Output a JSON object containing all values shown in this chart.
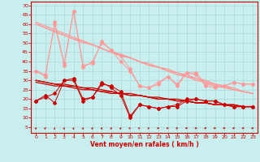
{
  "xlabel": "Vent moyen/en rafales ( km/h )",
  "background_color": "#c8eeee",
  "grid_color": "#a8d8d8",
  "text_color": "#cc0000",
  "spine_color": "#cc0000",
  "ylim": [
    2,
    72
  ],
  "yticks": [
    5,
    10,
    15,
    20,
    25,
    30,
    35,
    40,
    45,
    50,
    55,
    60,
    65,
    70
  ],
  "xlim": [
    -0.5,
    23.5
  ],
  "xticks": [
    0,
    1,
    2,
    3,
    4,
    5,
    6,
    7,
    8,
    9,
    10,
    11,
    12,
    13,
    14,
    15,
    16,
    17,
    18,
    19,
    20,
    21,
    22,
    23
  ],
  "line_dark_jagged1": [
    19,
    22,
    18,
    30,
    30,
    19,
    21,
    29,
    26,
    22,
    10,
    17,
    16,
    15,
    16,
    16,
    19,
    20,
    19,
    19,
    17,
    16,
    16,
    16
  ],
  "line_dark_jagged2": [
    19,
    21,
    23,
    30,
    31,
    20,
    21,
    28,
    27,
    24,
    11,
    17,
    16,
    15,
    16,
    17,
    20,
    20,
    19,
    19,
    17,
    16,
    16,
    16
  ],
  "line_dark_trend1": [
    30,
    29,
    28,
    27,
    27,
    26,
    25,
    24,
    24,
    23,
    22,
    22,
    21,
    20,
    20,
    19,
    19,
    18,
    18,
    17,
    17,
    17,
    16,
    16
  ],
  "line_dark_trend2": [
    30,
    29,
    28,
    28,
    27,
    26,
    26,
    25,
    24,
    23,
    23,
    22,
    21,
    21,
    20,
    20,
    19,
    18,
    18,
    17,
    17,
    17,
    16,
    16
  ],
  "line_dark_trend3": [
    29,
    28,
    27,
    27,
    26,
    25,
    25,
    24,
    23,
    23,
    22,
    22,
    21,
    20,
    20,
    19,
    19,
    18,
    18,
    17,
    17,
    16,
    16,
    16
  ],
  "line_light_jagged1": [
    35,
    32,
    61,
    39,
    67,
    37,
    40,
    50,
    46,
    40,
    35,
    27,
    26,
    28,
    32,
    27,
    34,
    33,
    27,
    26,
    27,
    29,
    28,
    28
  ],
  "line_light_jagged2": [
    35,
    33,
    60,
    38,
    67,
    38,
    39,
    51,
    46,
    43,
    36,
    27,
    26,
    29,
    32,
    28,
    34,
    34,
    28,
    27,
    27,
    29,
    28,
    28
  ],
  "line_light_trend1": [
    61,
    59,
    57,
    55,
    53,
    51,
    49,
    47,
    45,
    44,
    42,
    40,
    38,
    37,
    35,
    33,
    32,
    30,
    29,
    27,
    26,
    25,
    24,
    23
  ],
  "line_light_trend2": [
    60,
    58,
    56,
    54,
    52,
    51,
    49,
    47,
    45,
    43,
    42,
    40,
    38,
    37,
    35,
    34,
    32,
    31,
    29,
    28,
    27,
    25,
    24,
    23
  ],
  "line_light_trend3": [
    60,
    58,
    56,
    54,
    52,
    50,
    49,
    47,
    45,
    44,
    42,
    40,
    39,
    37,
    36,
    34,
    33,
    31,
    30,
    28,
    27,
    26,
    24,
    23
  ],
  "dark_color": "#cc0000",
  "light_color": "#ff9999",
  "arrow_angles": [
    10,
    10,
    5,
    5,
    5,
    5,
    10,
    10,
    10,
    10,
    45,
    45,
    45,
    50,
    50,
    50,
    55,
    55,
    55,
    55,
    55,
    55,
    55,
    55
  ]
}
